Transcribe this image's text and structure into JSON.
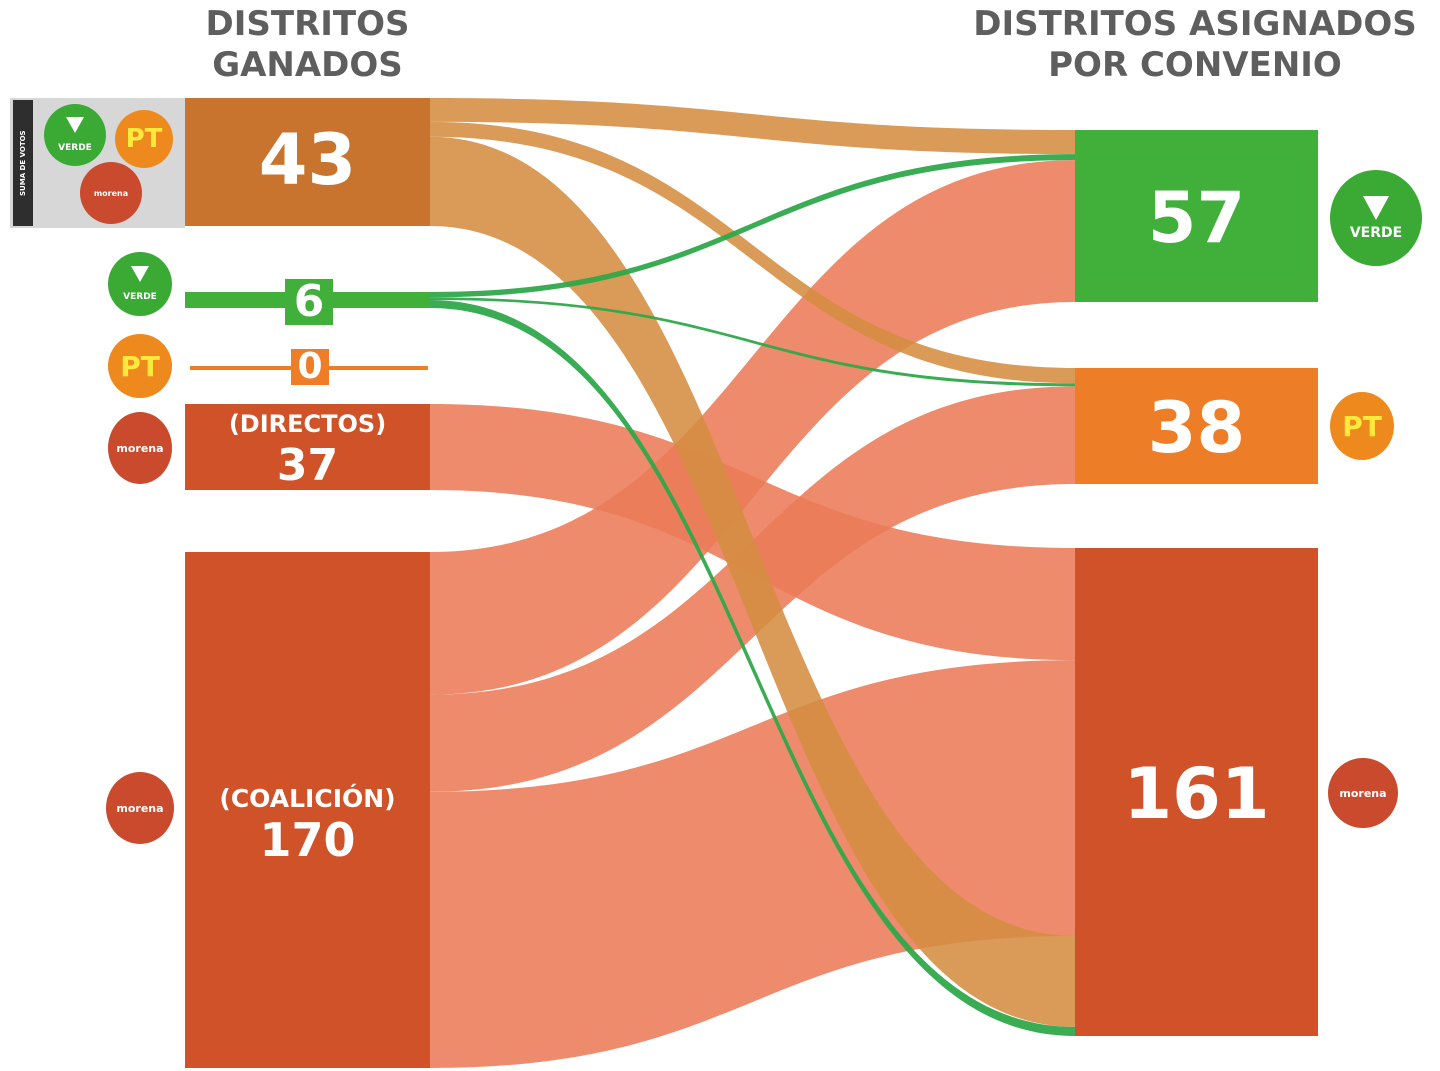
{
  "headers": {
    "left": [
      "DISTRITOS",
      "GANADOS"
    ],
    "right": [
      "DISTRITOS ASIGNADOS",
      "POR CONVENIO"
    ]
  },
  "coalition_box_vertical_text": "SUMA DE VOTOS",
  "left_nodes": {
    "coalicion_suma": {
      "value": "43"
    },
    "verde": {
      "value": "6"
    },
    "pt": {
      "value": "0"
    },
    "morena_directos": {
      "label": "(DIRECTOS)",
      "value": "37"
    },
    "morena_coalicion": {
      "label": "(COALICIÓN)",
      "value": "170"
    }
  },
  "right_nodes": {
    "verde": {
      "value": "57"
    },
    "pt": {
      "value": "38"
    },
    "morena": {
      "value": "161"
    }
  },
  "logos": {
    "verde": "VERDE",
    "pt": "PT",
    "morena": "morena"
  },
  "colors": {
    "coalition": "#c8742e",
    "coalition_flow": "#d58d42",
    "verde": "#40b03a",
    "verde_flow": "#2fa84a",
    "pt": "#ee7d27",
    "morena": "#cf5228",
    "morena_flow": "#ec7b59",
    "header_text": "#5e5e5e"
  },
  "chart_data": {
    "type": "sankey",
    "title": "",
    "source_column_label": "DISTRITOS GANADOS",
    "target_column_label": "DISTRITOS ASIGNADOS POR CONVENIO",
    "sources": [
      {
        "id": "suma",
        "name": "",
        "value": 43
      },
      {
        "id": "verde",
        "name": "VERDE",
        "value": 6
      },
      {
        "id": "pt",
        "name": "PT",
        "value": 0
      },
      {
        "id": "directos",
        "name": "(DIRECTOS)",
        "value": 37
      },
      {
        "id": "coalicion",
        "name": "(COALICIÓN)",
        "value": 170
      }
    ],
    "targets": [
      {
        "id": "verde",
        "name": "VERDE",
        "value": 57
      },
      {
        "id": "pt",
        "name": "PT",
        "value": 38
      },
      {
        "id": "morena",
        "name": "morena",
        "value": 161
      }
    ],
    "links": [
      {
        "source": "suma",
        "target": "verde",
        "value": 8
      },
      {
        "source": "suma",
        "target": "pt",
        "value": 5
      },
      {
        "source": "suma",
        "target": "morena",
        "value": 30
      },
      {
        "source": "verde",
        "target": "verde",
        "value": 2
      },
      {
        "source": "verde",
        "target": "pt",
        "value": 1
      },
      {
        "source": "verde",
        "target": "morena",
        "value": 3
      },
      {
        "source": "directos",
        "target": "verde",
        "value": 0
      },
      {
        "source": "directos",
        "target": "pt",
        "value": 0
      },
      {
        "source": "directos",
        "target": "morena",
        "value": 37
      },
      {
        "source": "coalicion",
        "target": "verde",
        "value": 47
      },
      {
        "source": "coalicion",
        "target": "pt",
        "value": 32
      },
      {
        "source": "coalicion",
        "target": "morena",
        "value": 91
      }
    ]
  }
}
